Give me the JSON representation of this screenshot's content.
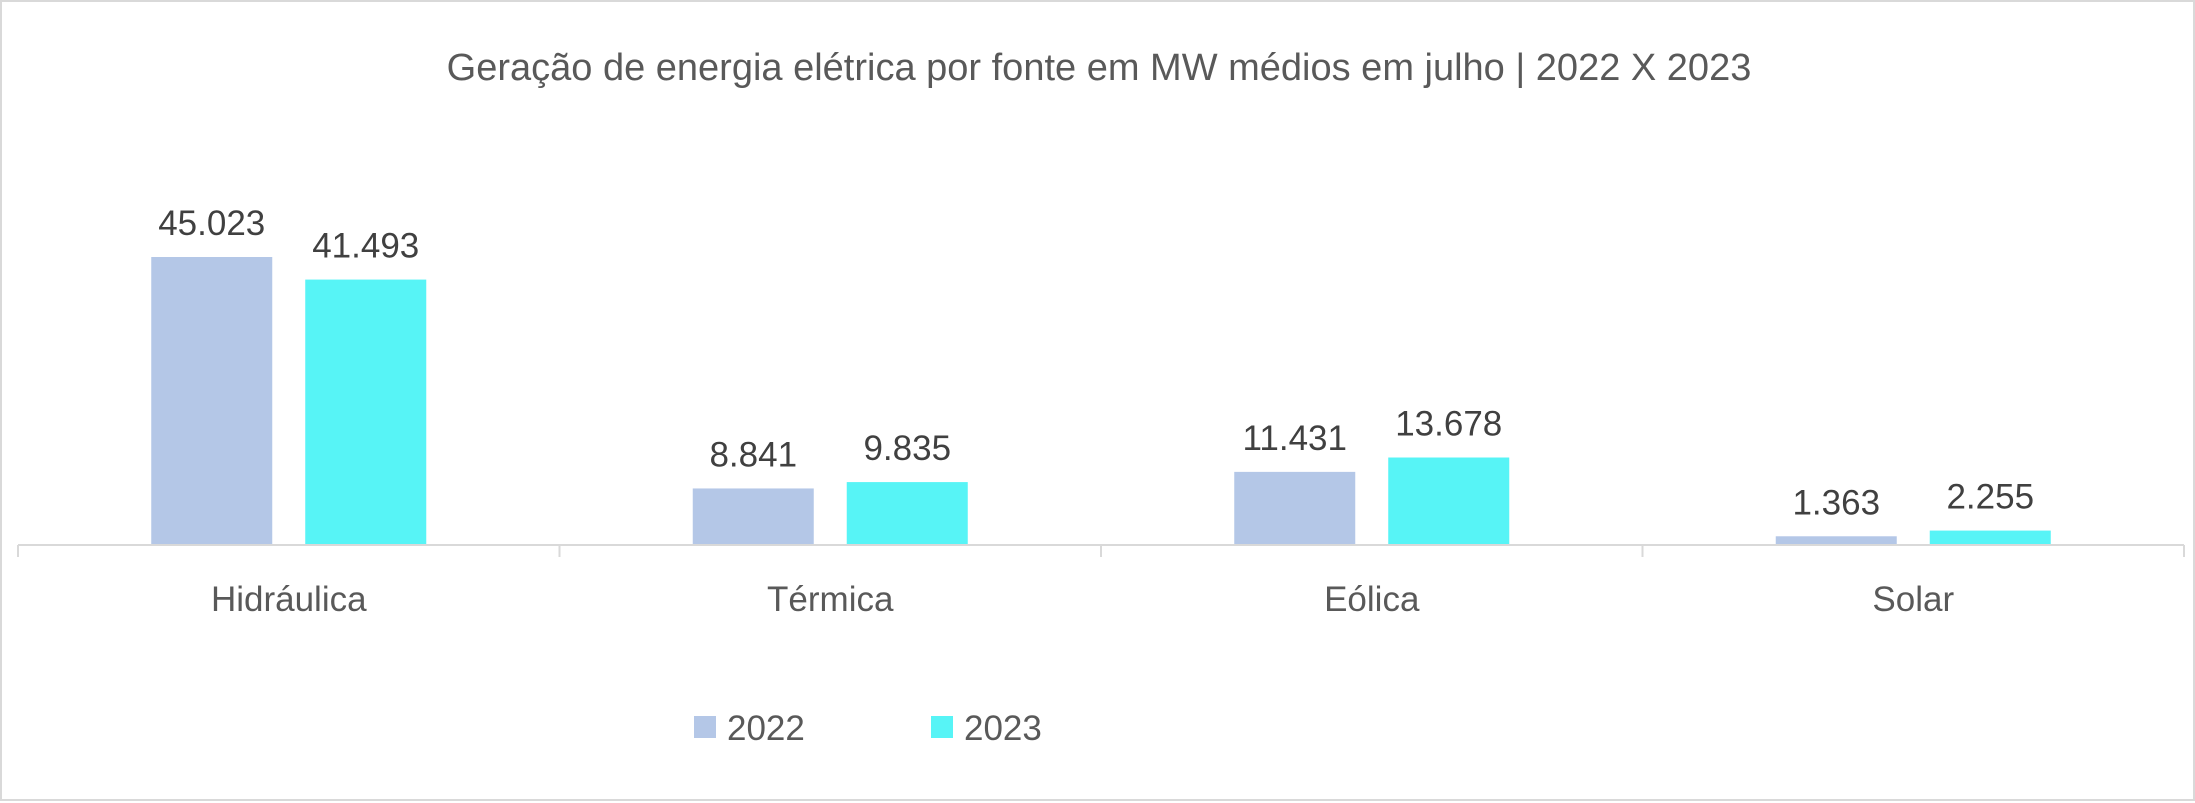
{
  "chart_data": {
    "type": "bar",
    "title": "Geração de energia elétrica por fonte em MW médios em julho | 2022 X 2023",
    "categories": [
      "Hidráulica",
      "Térmica",
      "Eólica",
      "Solar"
    ],
    "series": [
      {
        "name": "2022",
        "values": [
          45023,
          8841,
          11431,
          1363
        ],
        "labels": [
          "45.023",
          "8.841",
          "11.431",
          "1.363"
        ],
        "color": "#b4c7e7"
      },
      {
        "name": "2023",
        "values": [
          41493,
          9835,
          13678,
          2255
        ],
        "labels": [
          "41.493",
          "9.835",
          "13.678",
          "2.255"
        ],
        "color": "#57f4f6"
      }
    ],
    "ylim": [
      0,
      50000
    ],
    "xlabel": "",
    "ylabel": "",
    "grid": false,
    "legend_position": "bottom",
    "axis_color": "#d9d9d9"
  }
}
